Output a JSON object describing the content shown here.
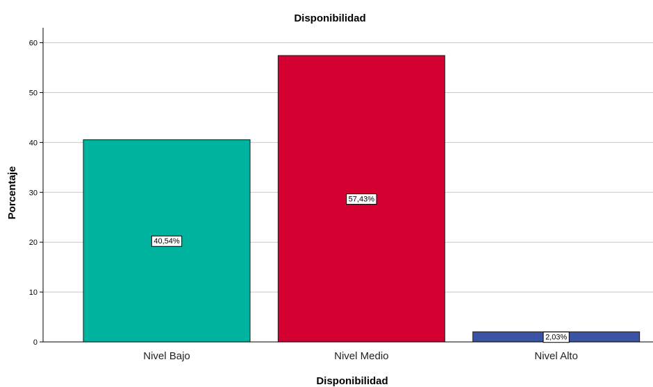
{
  "chart_data": {
    "type": "bar",
    "title": "Disponibilidad",
    "xlabel": "Disponibilidad",
    "ylabel": "Porcentaje",
    "categories": [
      "Nivel Bajo",
      "Nivel Medio",
      "Nivel Alto"
    ],
    "values": [
      40.54,
      57.43,
      2.03
    ],
    "data_labels": [
      "40,54%",
      "57,43%",
      "2,03%"
    ],
    "colors": [
      "#00b39e",
      "#d50032",
      "#3a53a4"
    ],
    "ylim": [
      0,
      63
    ],
    "yticks": [
      0,
      10,
      20,
      30,
      40,
      50,
      60
    ],
    "ytick_labels": [
      "0",
      "10",
      "20",
      "30",
      "40",
      "50",
      "60"
    ],
    "grid": true,
    "legend": "none"
  }
}
